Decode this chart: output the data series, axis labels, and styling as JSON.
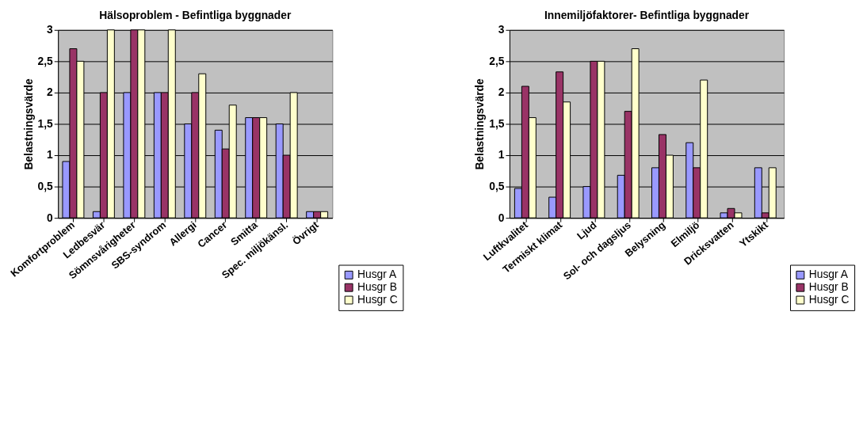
{
  "chart_data": [
    {
      "type": "bar",
      "title": "Hälsoproblem - Befintliga byggnader",
      "ylabel": "Belastningsvärde",
      "categories": [
        "Komfortproblem",
        "Ledbesvär",
        "Sömnsvårigheter",
        "SBS-syndrom",
        "Allergi",
        "Cancer",
        "Smitta",
        "Spec. miljökänsl.",
        "Övrigt"
      ],
      "series": [
        {
          "name": "Husgr A",
          "color": "#9999ff",
          "values": [
            0.9,
            0.1,
            2,
            2,
            1.5,
            1.4,
            1.6,
            1.5,
            0.1
          ]
        },
        {
          "name": "Husgr B",
          "color": "#993366",
          "values": [
            2.7,
            2,
            3,
            2,
            2,
            1.1,
            1.6,
            1,
            0.1
          ]
        },
        {
          "name": "Husgr C",
          "color": "#ffffcc",
          "values": [
            2.5,
            3,
            3,
            3,
            2.3,
            1.8,
            1.6,
            2,
            0.1
          ]
        }
      ],
      "ylim": [
        0,
        3
      ],
      "yticks": [
        0,
        {
          "value": 0.5,
          "label": "0,5"
        },
        1,
        {
          "value": 1.5,
          "label": "1,5"
        },
        2,
        {
          "value": 2.5,
          "label": "2,5"
        },
        3
      ],
      "grid": "y",
      "legend": "bottom right"
    },
    {
      "type": "bar",
      "title": "Innemiljöfaktorer- Befintliga byggnader",
      "ylabel": "Belastningsvärde",
      "categories": [
        "Luftkvalitet",
        "Termiskt klimat",
        "Ljud",
        "Sol- och dagsljus",
        "Belysning",
        "Elmiljö",
        "Dricksvatten",
        "Ytskikt"
      ],
      "series": [
        {
          "name": "Husgr A",
          "color": "#9999ff",
          "values": [
            0.47,
            0.33,
            0.5,
            0.68,
            0.8,
            1.2,
            0.08,
            0.8
          ]
        },
        {
          "name": "Husgr B",
          "color": "#993366",
          "values": [
            2.1,
            2.33,
            2.5,
            1.7,
            1.33,
            0.8,
            0.15,
            0.08
          ]
        },
        {
          "name": "Husgr C",
          "color": "#ffffcc",
          "values": [
            1.6,
            1.85,
            2.5,
            2.7,
            1.0,
            2.2,
            0.08,
            0.8
          ]
        }
      ],
      "ylim": [
        0,
        3
      ],
      "yticks": [
        0,
        {
          "value": 0.5,
          "label": "0,5"
        },
        1,
        {
          "value": 1.5,
          "label": "1,5"
        },
        2,
        {
          "value": 2.5,
          "label": "2,5"
        },
        3
      ],
      "grid": "y",
      "legend": "bottom right"
    }
  ]
}
